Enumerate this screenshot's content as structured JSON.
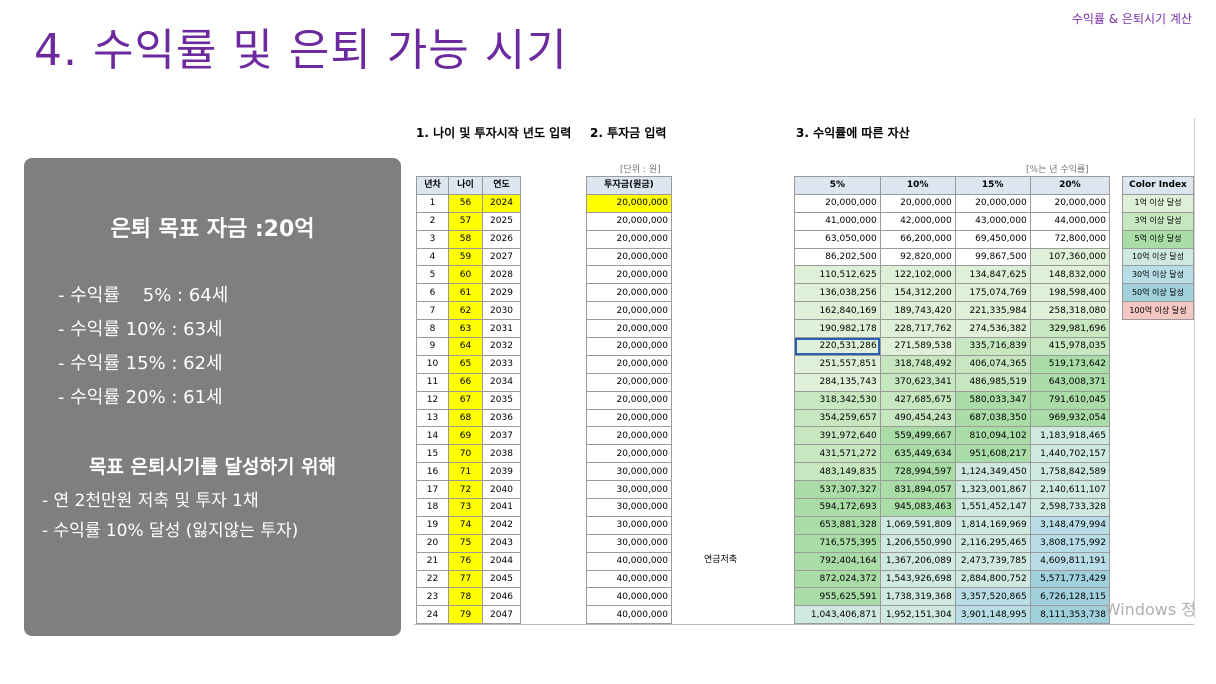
{
  "corner_label": "수익률 & 은퇴시기 계산",
  "title": "4. 수익률 및 은퇴 가능 시기",
  "panel": {
    "goal": "은퇴 목표 자금 :20억",
    "rates": [
      "- 수익률    5% : 64세",
      "- 수익률 10% : 63세",
      "- 수익률 15% : 62세",
      "- 수익률 20% : 61세"
    ],
    "goal2": "목표 은퇴시기를 달성하기 위해",
    "steps": [
      "- 연 2천만원 저축 및 투자 1채",
      "- 수익률 10% 달성 (잃지않는 투자)"
    ]
  },
  "sheet": {
    "section1": "1. 나이 및 투자시작 년도 입력",
    "section2": "2. 투자금 입력",
    "section3": "3. 수익률에 따른 자산",
    "unit2": "[단위 : 원]",
    "unit3": "[%는 년 수익률]",
    "headers1": [
      "년차",
      "나이",
      "연도"
    ],
    "header2": "투자금(원금)",
    "headers3": [
      "5%",
      "10%",
      "15%",
      "20%"
    ],
    "header4": "Color Index",
    "pension_label": "연금저축",
    "watermark": "Windows 정",
    "colors": {
      "yellow": "#ffff00",
      "header": "#dce6f1",
      "legend": [
        "#dff0d8",
        "#c6e7c0",
        "#a9dca7",
        "#cfe9e0",
        "#b9dde6",
        "#9fd0dc",
        "#f4c7c3"
      ]
    },
    "legend": [
      "1억 이상 달성",
      "3억 이상 달성",
      "5억 이상 달성",
      "10억 이상 달성",
      "30억 이상 달성",
      "50억 이상 달성",
      "100억 이상 달성"
    ],
    "rows": [
      {
        "n": "1",
        "age": "56",
        "year": "2024",
        "inv": "20,000,000",
        "v": [
          "20,000,000",
          "20,000,000",
          "20,000,000",
          "20,000,000"
        ]
      },
      {
        "n": "2",
        "age": "57",
        "year": "2025",
        "inv": "20,000,000",
        "v": [
          "41,000,000",
          "42,000,000",
          "43,000,000",
          "44,000,000"
        ]
      },
      {
        "n": "3",
        "age": "58",
        "year": "2026",
        "inv": "20,000,000",
        "v": [
          "63,050,000",
          "66,200,000",
          "69,450,000",
          "72,800,000"
        ]
      },
      {
        "n": "4",
        "age": "59",
        "year": "2027",
        "inv": "20,000,000",
        "v": [
          "86,202,500",
          "92,820,000",
          "99,867,500",
          "107,360,000"
        ]
      },
      {
        "n": "5",
        "age": "60",
        "year": "2028",
        "inv": "20,000,000",
        "v": [
          "110,512,625",
          "122,102,000",
          "134,847,625",
          "148,832,000"
        ]
      },
      {
        "n": "6",
        "age": "61",
        "year": "2029",
        "inv": "20,000,000",
        "v": [
          "136,038,256",
          "154,312,200",
          "175,074,769",
          "198,598,400"
        ]
      },
      {
        "n": "7",
        "age": "62",
        "year": "2030",
        "inv": "20,000,000",
        "v": [
          "162,840,169",
          "189,743,420",
          "221,335,984",
          "258,318,080"
        ]
      },
      {
        "n": "8",
        "age": "63",
        "year": "2031",
        "inv": "20,000,000",
        "v": [
          "190,982,178",
          "228,717,762",
          "274,536,382",
          "329,981,696"
        ]
      },
      {
        "n": "9",
        "age": "64",
        "year": "2032",
        "inv": "20,000,000",
        "v": [
          "220,531,286",
          "271,589,538",
          "335,716,839",
          "415,978,035"
        ]
      },
      {
        "n": "10",
        "age": "65",
        "year": "2033",
        "inv": "20,000,000",
        "v": [
          "251,557,851",
          "318,748,492",
          "406,074,365",
          "519,173,642"
        ]
      },
      {
        "n": "11",
        "age": "66",
        "year": "2034",
        "inv": "20,000,000",
        "v": [
          "284,135,743",
          "370,623,341",
          "486,985,519",
          "643,008,371"
        ]
      },
      {
        "n": "12",
        "age": "67",
        "year": "2035",
        "inv": "20,000,000",
        "v": [
          "318,342,530",
          "427,685,675",
          "580,033,347",
          "791,610,045"
        ]
      },
      {
        "n": "13",
        "age": "68",
        "year": "2036",
        "inv": "20,000,000",
        "v": [
          "354,259,657",
          "490,454,243",
          "687,038,350",
          "969,932,054"
        ]
      },
      {
        "n": "14",
        "age": "69",
        "year": "2037",
        "inv": "20,000,000",
        "v": [
          "391,972,640",
          "559,499,667",
          "810,094,102",
          "1,183,918,465"
        ]
      },
      {
        "n": "15",
        "age": "70",
        "year": "2038",
        "inv": "20,000,000",
        "v": [
          "431,571,272",
          "635,449,634",
          "951,608,217",
          "1,440,702,157"
        ]
      },
      {
        "n": "16",
        "age": "71",
        "year": "2039",
        "inv": "30,000,000",
        "v": [
          "483,149,835",
          "728,994,597",
          "1,124,349,450",
          "1,758,842,589"
        ]
      },
      {
        "n": "17",
        "age": "72",
        "year": "2040",
        "inv": "30,000,000",
        "v": [
          "537,307,327",
          "831,894,057",
          "1,323,001,867",
          "2,140,611,107"
        ]
      },
      {
        "n": "18",
        "age": "73",
        "year": "2041",
        "inv": "30,000,000",
        "v": [
          "594,172,693",
          "945,083,463",
          "1,551,452,147",
          "2,598,733,328"
        ]
      },
      {
        "n": "19",
        "age": "74",
        "year": "2042",
        "inv": "30,000,000",
        "v": [
          "653,881,328",
          "1,069,591,809",
          "1,814,169,969",
          "3,148,479,994"
        ]
      },
      {
        "n": "20",
        "age": "75",
        "year": "2043",
        "inv": "30,000,000",
        "v": [
          "716,575,395",
          "1,206,550,990",
          "2,116,295,465",
          "3,808,175,992"
        ]
      },
      {
        "n": "21",
        "age": "76",
        "year": "2044",
        "inv": "40,000,000",
        "v": [
          "792,404,164",
          "1,367,206,089",
          "2,473,739,785",
          "4,609,811,191"
        ]
      },
      {
        "n": "22",
        "age": "77",
        "year": "2045",
        "inv": "40,000,000",
        "v": [
          "872,024,372",
          "1,543,926,698",
          "2,884,800,752",
          "5,571,773,429"
        ]
      },
      {
        "n": "23",
        "age": "78",
        "year": "2046",
        "inv": "40,000,000",
        "v": [
          "955,625,591",
          "1,738,319,368",
          "3,357,520,865",
          "6,726,128,115"
        ]
      },
      {
        "n": "24",
        "age": "79",
        "year": "2047",
        "inv": "40,000,000",
        "v": [
          "1,043,406,871",
          "1,952,151,304",
          "3,901,148,995",
          "8,111,353,738"
        ]
      }
    ]
  }
}
